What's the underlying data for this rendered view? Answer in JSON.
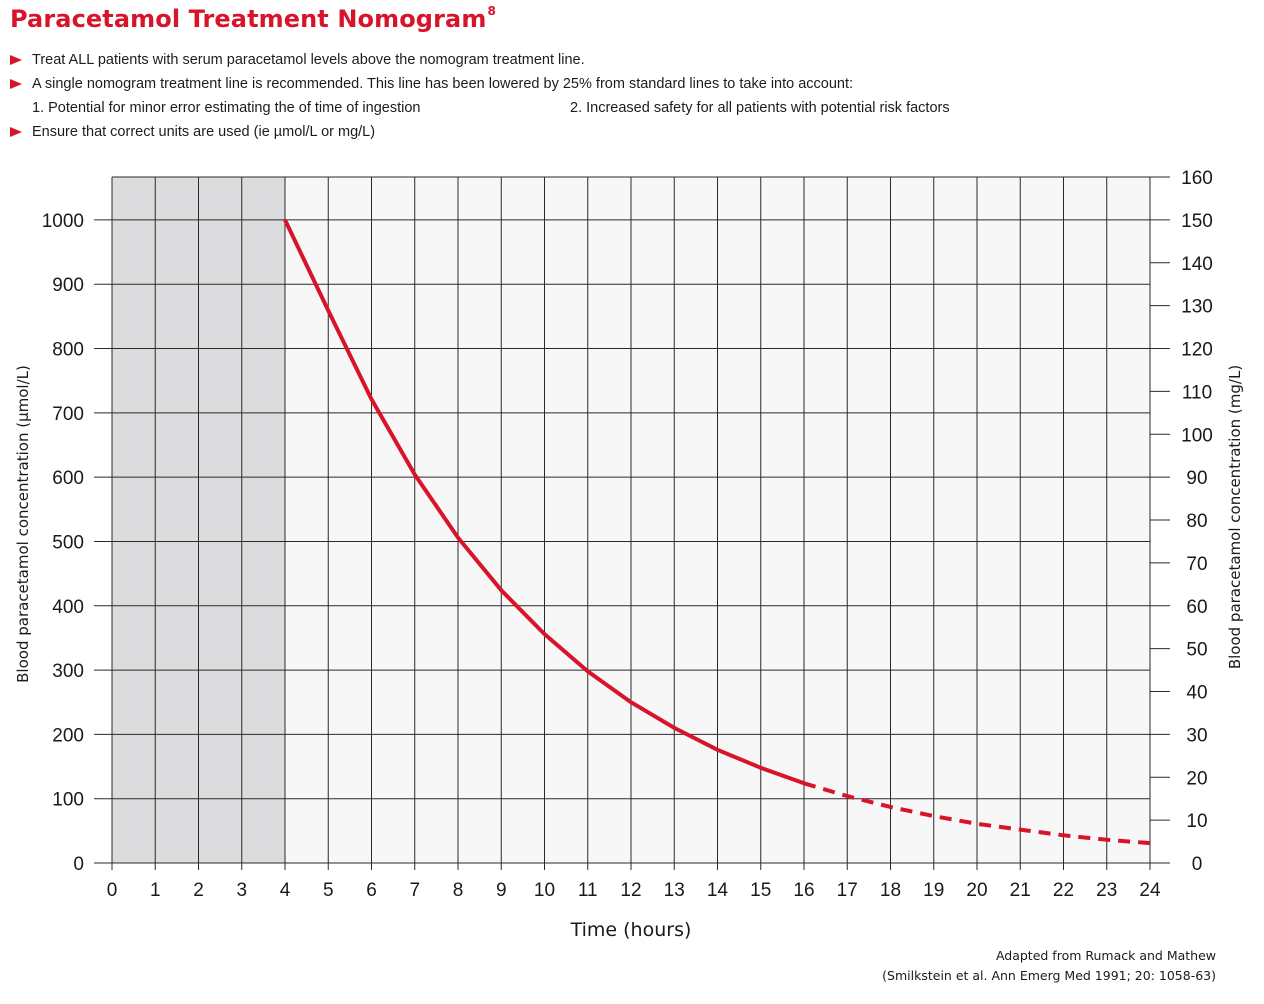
{
  "header": {
    "title": "Paracetamol Treatment Nomogram",
    "title_sup": "8"
  },
  "notes": {
    "bullet1": "Treat ALL patients with serum paracetamol levels above the nomogram treatment line.",
    "bullet2": "A single nomogram treatment line is recommended. This line has been lowered by 25% from standard lines to take into account:",
    "sub1": "1.  Potential for minor error estimating the of time of ingestion",
    "sub2": "2.  Increased safety for all patients with potential risk factors",
    "bullet3": "Ensure that correct units are used (ie µmol/L or mg/L)"
  },
  "footer": {
    "line1": "Adapted from Rumack and Mathew",
    "line2": "(Smilkstein et al. Ann Emerg Med 1991; 20: 1058-63)"
  },
  "colors": {
    "accent": "#d7142a",
    "shaded_region": "#dcdcde",
    "plot_background": "#f6f7f6",
    "grid": "#2a2a2a"
  },
  "chart_data": {
    "type": "line",
    "xlabel": "Time (hours)",
    "ylabel_left": "Blood paracetamol concentration (µmol/L)",
    "ylabel_right": "Blood paracetamol concentration (mg/L)",
    "xlim": [
      0,
      24
    ],
    "ylim_left": [
      0,
      1000
    ],
    "ylim_right": [
      0,
      160
    ],
    "plot_top_left_units": 1066.7,
    "x_ticks": [
      "0",
      "1",
      "2",
      "3",
      "4",
      "5",
      "6",
      "7",
      "8",
      "9",
      "10",
      "11",
      "12",
      "13",
      "14",
      "15",
      "16",
      "17",
      "18",
      "19",
      "20",
      "21",
      "22",
      "23",
      "24"
    ],
    "y_ticks_left": [
      "0",
      "100",
      "200",
      "300",
      "400",
      "500",
      "600",
      "700",
      "800",
      "900",
      "1000"
    ],
    "y_ticks_right": [
      "0",
      "10",
      "20",
      "30",
      "40",
      "50",
      "60",
      "70",
      "80",
      "90",
      "100",
      "110",
      "120",
      "130",
      "140",
      "150",
      "160"
    ],
    "shaded_x_range": [
      0,
      4
    ],
    "grid": true,
    "series": [
      {
        "style": "solid",
        "x": [
          4,
          5,
          6,
          7,
          8,
          9,
          10,
          11,
          12,
          13,
          14,
          15,
          16
        ],
        "y": [
          1000,
          859,
          721,
          604,
          506,
          424,
          356,
          298,
          250,
          210,
          176,
          148,
          124
        ]
      },
      {
        "style": "dashed",
        "x": [
          16,
          17,
          18,
          19,
          20,
          21,
          22,
          23,
          24
        ],
        "y": [
          124,
          104,
          87,
          73,
          61,
          52,
          43,
          36,
          31
        ]
      }
    ]
  }
}
